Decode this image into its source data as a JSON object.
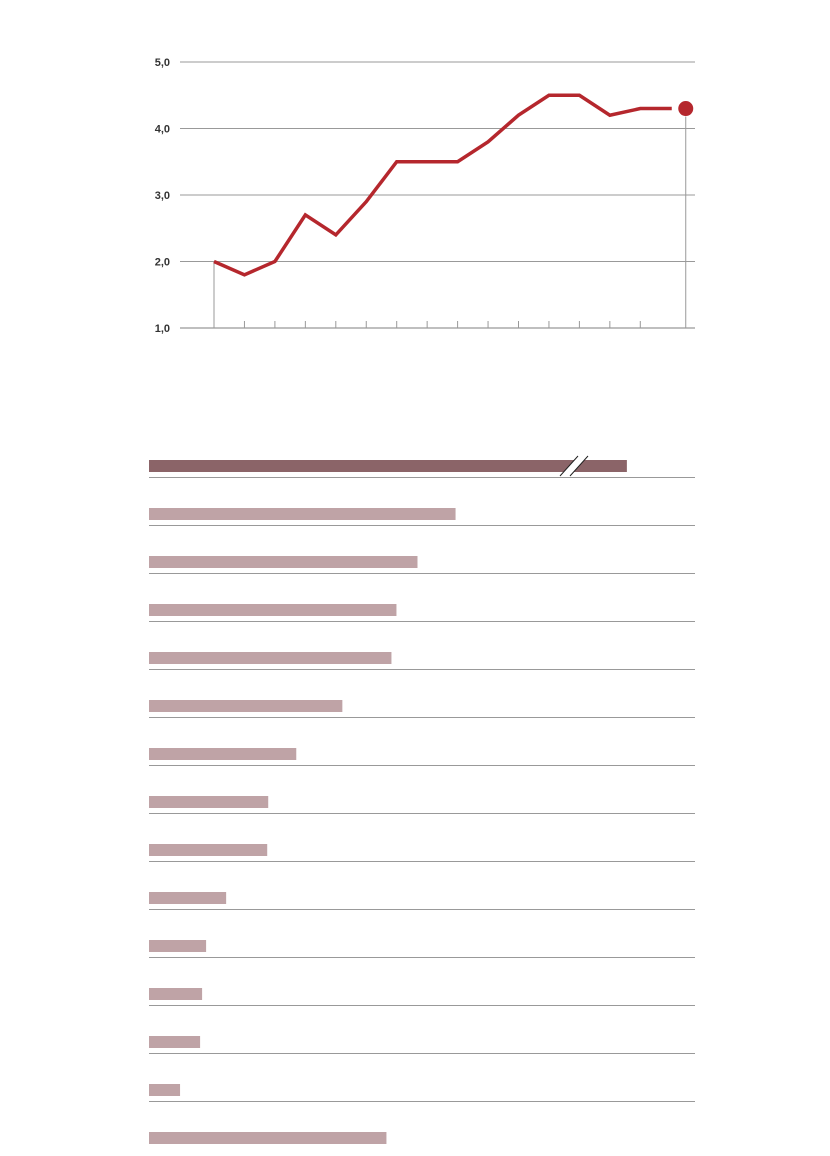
{
  "colors": {
    "line": "#b5272d",
    "bar_highlight": "#8b6468",
    "bar": "#bfa3a6",
    "grid": "#999999"
  },
  "chart_data": [
    {
      "type": "line",
      "title": "",
      "xlabel": "",
      "ylabel": "",
      "ylim": [
        1.0,
        5.0
      ],
      "yticks": [
        "1,0",
        "2,0",
        "3,0",
        "4,0",
        "5,0"
      ],
      "ytick_values": [
        1,
        2,
        3,
        4,
        5
      ],
      "x": [
        0,
        1,
        2,
        3,
        4,
        5,
        6,
        7,
        8,
        9,
        10,
        11,
        12,
        13,
        14,
        15
      ],
      "values": [
        2.0,
        1.8,
        2.0,
        2.7,
        2.4,
        2.9,
        3.5,
        3.5,
        3.5,
        3.8,
        4.2,
        4.5,
        4.5,
        4.2,
        4.3,
        4.3
      ],
      "highlight_last_point": true,
      "grid": true
    },
    {
      "type": "bar",
      "orientation": "horizontal",
      "title": "",
      "categories": [
        "",
        "",
        "",
        "",
        "",
        "",
        "",
        "",
        "",
        "",
        "",
        "",
        "",
        "",
        ""
      ],
      "values": [
        477,
        306,
        268,
        247,
        242,
        193,
        147,
        119,
        118,
        77,
        57,
        53,
        51,
        31,
        237
      ],
      "first_bar_axis_break": true,
      "xlim": [
        0,
        545
      ]
    }
  ]
}
